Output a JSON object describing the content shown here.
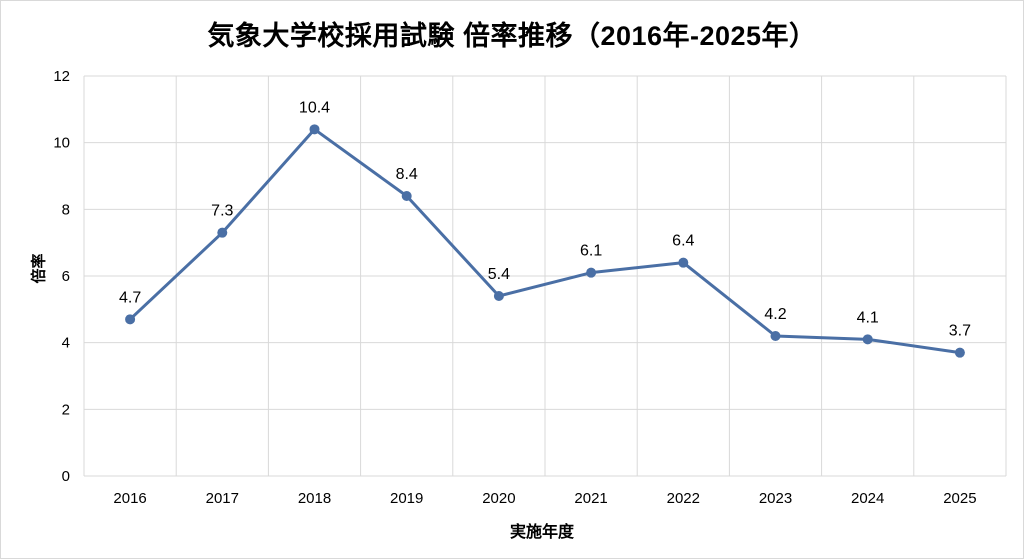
{
  "chart_data": {
    "type": "line",
    "title": "気象大学校採用試験 倍率推移（2016年-2025年）",
    "xlabel": "実施年度",
    "ylabel": "倍率",
    "categories": [
      "2016",
      "2017",
      "2018",
      "2019",
      "2020",
      "2021",
      "2022",
      "2023",
      "2024",
      "2025"
    ],
    "series": [
      {
        "name": "倍率",
        "values": [
          4.7,
          7.3,
          10.4,
          8.4,
          5.4,
          6.1,
          6.4,
          4.2,
          4.1,
          3.7
        ],
        "color": "#4a6fa5"
      }
    ],
    "ylim": [
      0,
      12
    ],
    "yticks": [
      0,
      2,
      4,
      6,
      8,
      10,
      12
    ],
    "grid": true,
    "data_labels": true,
    "legend": "none"
  },
  "colors": {
    "line": "#4a6fa5",
    "grid": "#d9d9d9"
  }
}
